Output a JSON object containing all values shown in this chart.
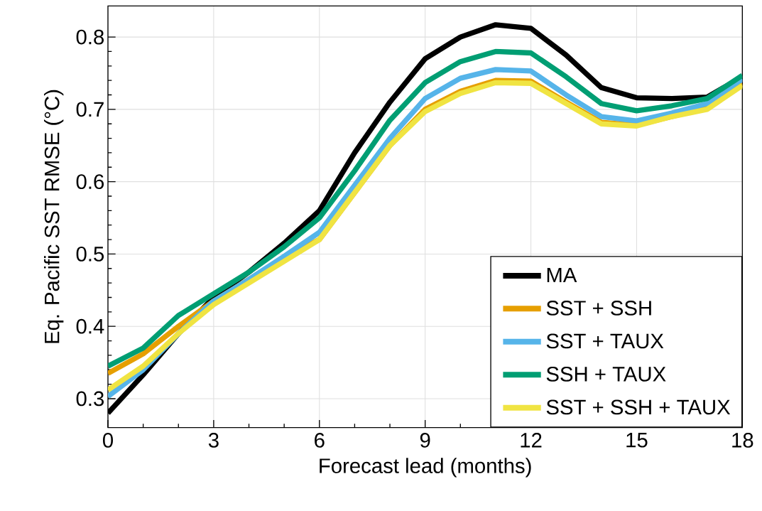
{
  "chart_data": {
    "type": "line",
    "xlabel": "Forecast lead (months)",
    "ylabel": "Eq. Pacific SST RMSE (°C)",
    "x": [
      0,
      1,
      2,
      3,
      4,
      5,
      6,
      7,
      8,
      9,
      10,
      11,
      12,
      13,
      14,
      15,
      16,
      17,
      18
    ],
    "series": [
      {
        "name": "MA",
        "color": "#000000",
        "values": [
          0.28,
          0.333,
          0.39,
          0.44,
          0.475,
          0.515,
          0.56,
          0.64,
          0.71,
          0.77,
          0.8,
          0.817,
          0.812,
          0.775,
          0.73,
          0.716,
          0.715,
          0.717,
          0.745
        ]
      },
      {
        "name": "SST + SSH",
        "color": "#e69f00",
        "values": [
          0.335,
          0.362,
          0.4,
          0.435,
          0.465,
          0.495,
          0.52,
          0.585,
          0.65,
          0.7,
          0.725,
          0.74,
          0.739,
          0.71,
          0.682,
          0.678,
          0.69,
          0.702,
          0.735
        ]
      },
      {
        "name": "SST + TAUX",
        "color": "#56b4e9",
        "values": [
          0.303,
          0.34,
          0.39,
          0.435,
          0.465,
          0.497,
          0.53,
          0.595,
          0.66,
          0.715,
          0.743,
          0.755,
          0.753,
          0.72,
          0.69,
          0.684,
          0.695,
          0.708,
          0.742
        ]
      },
      {
        "name": "SSH + TAUX",
        "color": "#009e73",
        "values": [
          0.345,
          0.37,
          0.415,
          0.445,
          0.475,
          0.51,
          0.55,
          0.615,
          0.685,
          0.737,
          0.766,
          0.78,
          0.778,
          0.745,
          0.708,
          0.698,
          0.705,
          0.715,
          0.747
        ]
      },
      {
        "name": "SST + SSH + TAUX",
        "color": "#f0e442",
        "values": [
          0.312,
          0.345,
          0.39,
          0.43,
          0.46,
          0.49,
          0.52,
          0.585,
          0.65,
          0.697,
          0.722,
          0.737,
          0.736,
          0.708,
          0.68,
          0.677,
          0.69,
          0.7,
          0.733
        ]
      }
    ],
    "xlim": [
      0,
      18
    ],
    "ylim": [
      0.26,
      0.843
    ],
    "xticks": [
      0,
      3,
      6,
      9,
      12,
      15,
      18
    ],
    "yticks": [
      0.3,
      0.4,
      0.5,
      0.6,
      0.7,
      0.8
    ],
    "grid": true,
    "legend": "bottom right",
    "marker": "none",
    "line_style": "solid"
  }
}
